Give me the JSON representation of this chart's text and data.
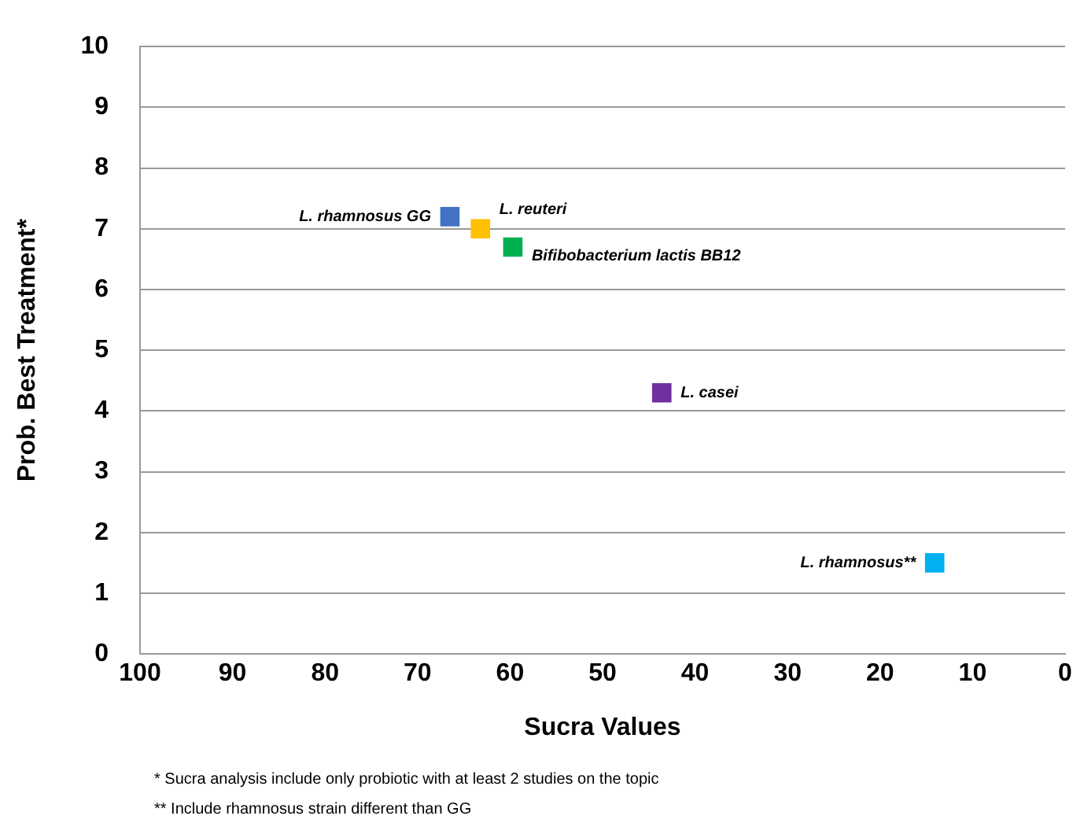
{
  "chart_data": {
    "type": "scatter",
    "xlabel": "Sucra Values",
    "ylabel": "Prob. Best Treatment*",
    "xlim": [
      100,
      0
    ],
    "xticks": [
      100,
      90,
      80,
      70,
      60,
      50,
      40,
      30,
      20,
      10,
      0
    ],
    "ylim": [
      0,
      10
    ],
    "yticks": [
      0,
      1,
      2,
      3,
      4,
      5,
      6,
      7,
      8,
      9,
      10
    ],
    "grid": "y",
    "legend": false,
    "marker": "square",
    "series": [
      {
        "name": "L. rhamnosus GG",
        "color": "#4472c4",
        "x": [
          66.5
        ],
        "values": [
          7.2
        ]
      },
      {
        "name": "L. reuteri",
        "color": "#ffc000",
        "x": [
          63.2
        ],
        "values": [
          7.0
        ]
      },
      {
        "name": "Bifibobacterium lactis BB12",
        "color": "#00b050",
        "x": [
          59.7
        ],
        "values": [
          6.7
        ]
      },
      {
        "name": "L. casei",
        "color": "#7030a0",
        "x": [
          43.6
        ],
        "values": [
          4.3
        ]
      },
      {
        "name": "L. rhamnosus**",
        "color": "#00b0f0",
        "x": [
          14.1
        ],
        "values": [
          1.5
        ]
      }
    ],
    "annotations": [
      "* Sucra analysis include only probiotic with at least 2 studies on the topic",
      "** Include rhamnosus strain different than GG"
    ]
  }
}
